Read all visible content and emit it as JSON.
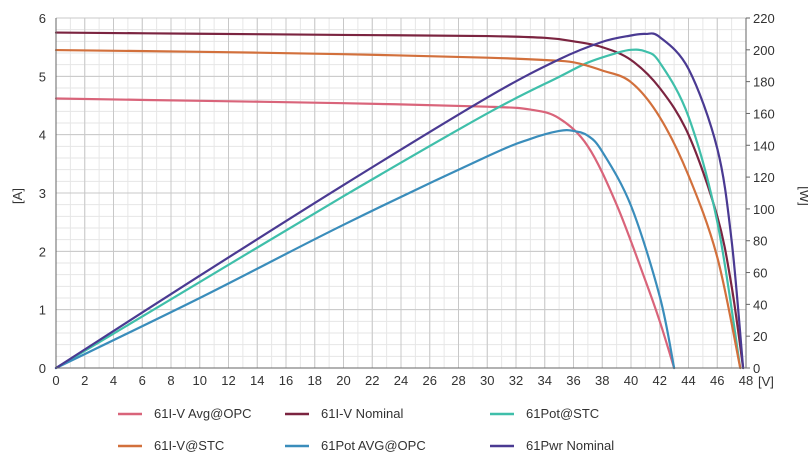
{
  "chart_data": {
    "type": "line",
    "x_unit_label": "[V]",
    "y_left_label": "[A]",
    "y_right_label": "[W]",
    "xlim": [
      0,
      48
    ],
    "ylim_left": [
      0,
      6
    ],
    "ylim_right": [
      0,
      220
    ],
    "grid": true,
    "x_ticks": [
      0,
      2,
      4,
      6,
      8,
      10,
      12,
      14,
      16,
      18,
      20,
      22,
      24,
      26,
      28,
      30,
      32,
      34,
      36,
      38,
      40,
      42,
      44,
      46,
      48
    ],
    "y_left_ticks": [
      0,
      1,
      2,
      3,
      4,
      5,
      6
    ],
    "y_right_ticks": [
      0,
      20,
      40,
      60,
      80,
      100,
      120,
      140,
      160,
      180,
      200,
      220
    ],
    "legend_position": "bottom",
    "series": [
      {
        "name": "61I-V Avg@OPC",
        "axis": "left",
        "color": "#d9647a",
        "x": [
          0,
          10,
          20,
          30,
          33,
          35,
          37,
          39,
          41,
          42,
          43
        ],
        "y": [
          4.62,
          4.58,
          4.54,
          4.48,
          4.43,
          4.28,
          3.8,
          2.8,
          1.5,
          0.8,
          0.0
        ]
      },
      {
        "name": "61I-V Nominal",
        "axis": "left",
        "color": "#7b2440",
        "x": [
          0,
          10,
          20,
          30,
          34,
          36,
          38,
          40,
          42,
          44,
          46,
          47,
          47.8
        ],
        "y": [
          5.75,
          5.73,
          5.71,
          5.69,
          5.66,
          5.6,
          5.5,
          5.28,
          4.8,
          4.0,
          2.6,
          1.4,
          0.0
        ]
      },
      {
        "name": "61Pot@STC",
        "axis": "right",
        "color": "#3fbfaa",
        "x": [
          0,
          10,
          20,
          30,
          35,
          37,
          39,
          40,
          41,
          42,
          44,
          46,
          47.6
        ],
        "y": [
          0,
          54,
          108,
          160,
          183,
          192,
          198,
          200,
          199,
          192,
          158,
          92,
          0
        ]
      },
      {
        "name": "61I-V@STC",
        "axis": "left",
        "color": "#d2703c",
        "x": [
          0,
          10,
          20,
          30,
          34,
          36,
          38,
          40,
          42,
          44,
          46,
          47.6
        ],
        "y": [
          5.45,
          5.42,
          5.38,
          5.32,
          5.28,
          5.24,
          5.1,
          4.9,
          4.3,
          3.3,
          1.9,
          0.0
        ]
      },
      {
        "name": "61Pot AVG@OPC",
        "axis": "right",
        "color": "#3a8dbb",
        "x": [
          0,
          10,
          20,
          30,
          33,
          35,
          36,
          37,
          38,
          40,
          42,
          43
        ],
        "y": [
          0,
          44,
          90,
          133,
          144,
          149,
          149,
          146,
          136,
          102,
          45,
          0
        ]
      },
      {
        "name": "61Pwr Nominal",
        "axis": "right",
        "color": "#4a3a92",
        "x": [
          0,
          10,
          20,
          30,
          35,
          38,
          40,
          41,
          42,
          44,
          46,
          47,
          47.8
        ],
        "y": [
          0,
          58,
          115,
          170,
          194,
          205,
          209,
          210,
          208,
          188,
          138,
          80,
          0
        ]
      }
    ]
  }
}
